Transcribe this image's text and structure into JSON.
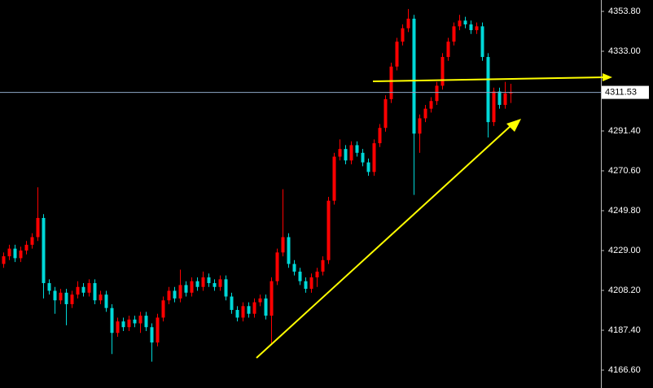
{
  "chart_data": {
    "type": "candlestick",
    "up_color": "#ff0000",
    "down_color": "#00d8d8",
    "ylim": [
      4157.26,
      4359.74
    ],
    "yticks": [
      {
        "value": 4166.6,
        "label": "4166.60"
      },
      {
        "value": 4187.4,
        "label": "4187.40"
      },
      {
        "value": 4208.2,
        "label": "4208.20"
      },
      {
        "value": 4229,
        "label": "4229.00"
      },
      {
        "value": 4249.8,
        "label": "4249.80"
      },
      {
        "value": 4270.6,
        "label": "4270.60"
      },
      {
        "value": 4291.4,
        "label": "4291.40"
      },
      {
        "value": 4333,
        "label": "4333.00"
      },
      {
        "value": 4353.8,
        "label": "4353.80"
      }
    ],
    "last_price": 4311.53,
    "open": [
      4222,
      4226,
      4230,
      4225,
      4229,
      4232,
      4236,
      4246,
      4212,
      4208,
      4203,
      4207,
      4201,
      4206,
      4210,
      4207,
      4212,
      4203,
      4206,
      4199,
      4186,
      4192,
      4189,
      4193,
      4191,
      4195,
      4189,
      4181,
      4194,
      4203,
      4208,
      4204,
      4211,
      4207,
      4213,
      4210,
      4215,
      4212,
      4210,
      4214,
      4205,
      4198,
      4194,
      4200,
      4196,
      4202,
      4204,
      4195,
      4213,
      4228,
      4236,
      4222,
      4218,
      4213,
      4209,
      4215,
      4218,
      4224,
      4255,
      4278,
      4282,
      4276,
      4284,
      4280,
      4275,
      4270,
      4285,
      4293,
      4308,
      4325,
      4338,
      4345,
      4350,
      4290,
      4298,
      4303,
      4307,
      4315,
      4330,
      4338,
      4346,
      4349,
      4347,
      4344,
      4346,
      4330,
      4296,
      4312,
      4305,
      4311
    ],
    "high": [
      4228,
      4232,
      4232,
      4231,
      4234,
      4238,
      4262,
      4248,
      4214,
      4210,
      4209,
      4209,
      4208,
      4213,
      4212,
      4214,
      4214,
      4208,
      4208,
      4201,
      4194,
      4194,
      4195,
      4195,
      4197,
      4197,
      4191,
      4196,
      4205,
      4210,
      4210,
      4219,
      4213,
      4215,
      4215,
      4218,
      4217,
      4214,
      4216,
      4216,
      4207,
      4200,
      4202,
      4202,
      4204,
      4206,
      4206,
      4215,
      4230,
      4261,
      4238,
      4224,
      4220,
      4215,
      4217,
      4220,
      4226,
      4257,
      4280,
      4287,
      4284,
      4286,
      4286,
      4282,
      4277,
      4287,
      4295,
      4310,
      4327,
      4340,
      4347,
      4355,
      4352,
      4300,
      4305,
      4309,
      4317,
      4332,
      4340,
      4348,
      4352,
      4351,
      4349,
      4348,
      4348,
      4332,
      4314,
      4314,
      4317,
      4316
    ],
    "low": [
      4220,
      4224,
      4223,
      4223,
      4227,
      4230,
      4234,
      4204,
      4206,
      4196,
      4201,
      4190,
      4199,
      4204,
      4205,
      4205,
      4201,
      4201,
      4197,
      4175,
      4184,
      4187,
      4187,
      4189,
      4186,
      4187,
      4171,
      4179,
      4192,
      4201,
      4202,
      4202,
      4205,
      4205,
      4208,
      4208,
      4210,
      4208,
      4208,
      4203,
      4196,
      4192,
      4192,
      4194,
      4194,
      4200,
      4193,
      4180,
      4211,
      4226,
      4220,
      4216,
      4211,
      4207,
      4207,
      4210,
      4216,
      4222,
      4253,
      4276,
      4274,
      4274,
      4278,
      4273,
      4268,
      4268,
      4283,
      4291,
      4306,
      4323,
      4336,
      4343,
      4258,
      4280,
      4296,
      4301,
      4305,
      4313,
      4328,
      4336,
      4344,
      4345,
      4342,
      4342,
      4328,
      4288,
      4294,
      4303,
      4303,
      4306
    ],
    "close": [
      4226,
      4230,
      4225,
      4229,
      4232,
      4236,
      4246,
      4212,
      4208,
      4203,
      4207,
      4201,
      4206,
      4210,
      4207,
      4212,
      4203,
      4206,
      4199,
      4186,
      4192,
      4189,
      4193,
      4191,
      4195,
      4189,
      4181,
      4194,
      4203,
      4208,
      4204,
      4211,
      4207,
      4213,
      4210,
      4215,
      4212,
      4210,
      4214,
      4205,
      4198,
      4194,
      4200,
      4196,
      4202,
      4204,
      4195,
      4213,
      4228,
      4236,
      4222,
      4218,
      4213,
      4209,
      4215,
      4218,
      4224,
      4255,
      4278,
      4282,
      4276,
      4284,
      4280,
      4275,
      4270,
      4285,
      4293,
      4308,
      4325,
      4338,
      4345,
      4350,
      4290,
      4298,
      4303,
      4307,
      4315,
      4330,
      4338,
      4346,
      4349,
      4347,
      4344,
      4346,
      4330,
      4296,
      4312,
      4305,
      4311,
      4311.53
    ]
  }
}
